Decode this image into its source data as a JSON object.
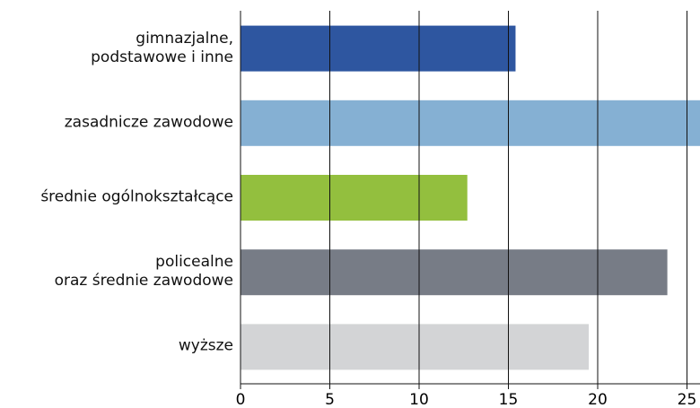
{
  "chart_data": {
    "type": "bar",
    "orientation": "horizontal",
    "categories": [
      "gimnazjalne,\npodstawowe i inne",
      "zasadnicze zawodowe",
      "średnie ogólnokształcące",
      "policealne\noraz średnie zawodowe",
      "wyższe"
    ],
    "values": [
      15.4,
      26.0,
      12.7,
      23.9,
      19.5
    ],
    "colors": [
      "#2e56a0",
      "#85b0d3",
      "#93bf3e",
      "#777c86",
      "#d3d4d6"
    ],
    "xlim": [
      0,
      25.8
    ],
    "xticks": [
      0,
      5,
      10,
      15,
      20,
      25
    ],
    "grid": true
  }
}
